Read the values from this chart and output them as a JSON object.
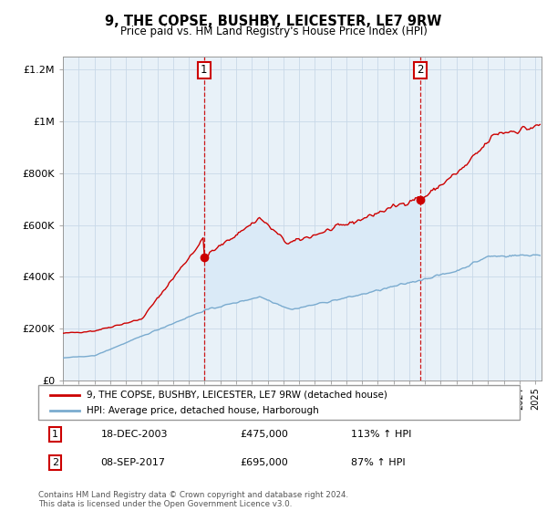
{
  "title": "9, THE COPSE, BUSHBY, LEICESTER, LE7 9RW",
  "subtitle": "Price paid vs. HM Land Registry's House Price Index (HPI)",
  "legend_line1": "9, THE COPSE, BUSHBY, LEICESTER, LE7 9RW (detached house)",
  "legend_line2": "HPI: Average price, detached house, Harborough",
  "annotation1_date": "18-DEC-2003",
  "annotation1_price": "£475,000",
  "annotation1_hpi": "113% ↑ HPI",
  "annotation2_date": "08-SEP-2017",
  "annotation2_price": "£695,000",
  "annotation2_hpi": "87% ↑ HPI",
  "footer": "Contains HM Land Registry data © Crown copyright and database right 2024.\nThis data is licensed under the Open Government Licence v3.0.",
  "red_color": "#cc0000",
  "blue_color": "#7aabcf",
  "fill_color": "#daeaf7",
  "plot_bg_color": "#e8f1f8",
  "grid_color": "#c8d8e8",
  "ylim": [
    0,
    1250000
  ],
  "yticks": [
    0,
    200000,
    400000,
    600000,
    800000,
    1000000,
    1200000
  ],
  "ytick_labels": [
    "£0",
    "£200K",
    "£400K",
    "£600K",
    "£800K",
    "£1M",
    "£1.2M"
  ],
  "point1_x": 2003.97,
  "point1_y": 475000,
  "point2_x": 2017.69,
  "point2_y": 695000,
  "xmin": 1995.0,
  "xmax": 2025.4
}
